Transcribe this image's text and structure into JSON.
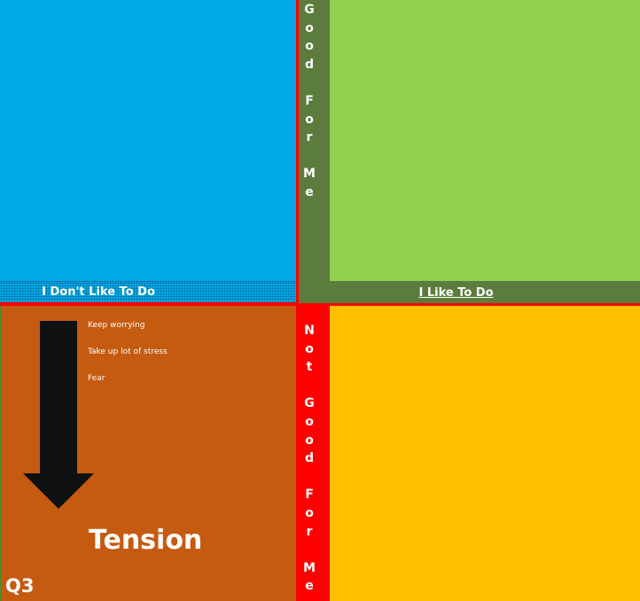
{
  "top_left": {
    "label": "I Don't Like To Do"
  },
  "top_right": {
    "label": "I Like To Do"
  },
  "divider_top": {
    "letters": [
      "G",
      "o",
      "o",
      "d",
      "",
      "F",
      "o",
      "r",
      "",
      "M",
      "e"
    ]
  },
  "divider_bottom": {
    "letters": [
      "N",
      "o",
      "t",
      "",
      "G",
      "o",
      "o",
      "d",
      "",
      "F",
      "o",
      "r",
      "",
      "M",
      "e"
    ]
  },
  "bottom_left": {
    "items": [
      "Keep worrying",
      "Take up lot of stress",
      "Fear"
    ],
    "heading": "Tension",
    "tag": "Q3"
  },
  "colors": {
    "blue": "#00aae6",
    "green": "#92d050",
    "dark_green": "#5b7c3c",
    "orange": "#c55a11",
    "yellow": "#ffc000",
    "red": "#ff0000",
    "arrow": "#0f1010"
  },
  "icons": {
    "arrow": "arrow-down-icon"
  }
}
